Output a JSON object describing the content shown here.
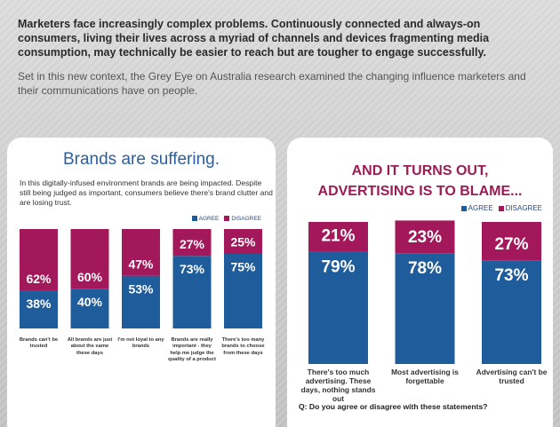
{
  "header": {
    "lead": "Marketers face increasingly complex problems. Continuously connected and always-on consumers, living their lives across a myriad of channels and devices fragmenting media consumption, may technically be easier to reach but are tougher to engage successfully.",
    "body": "Set in this new context, the Grey Eye on Australia research examined the changing influence marketers and their communications have on people."
  },
  "chart_data": [
    {
      "type": "bar",
      "stacked": true,
      "title": "Brands are suffering.",
      "subtitle": "In this digitally-infused environment brands are being impacted. Despite still being judged as important, consumers believe there's brand clutter and are losing trust.",
      "categories": [
        "Brands can't be trusted",
        "All brands are just about the same these days",
        "I'm not loyal to any brands",
        "Brands are really important - they help me judge the quality of a product",
        "There's too many brands to choose from these days"
      ],
      "series": [
        {
          "name": "AGREE",
          "color": "#1f5c9c",
          "values": [
            38,
            40,
            53,
            73,
            75
          ],
          "value_labels": [
            "38%",
            "40%",
            "53%",
            "73%",
            "75%"
          ]
        },
        {
          "name": "DISAGREE",
          "color": "#a3185a",
          "values": [
            62,
            60,
            47,
            27,
            25
          ],
          "value_labels": [
            "62%",
            "60%",
            "47%",
            "27%",
            "25%"
          ]
        }
      ],
      "ylim": [
        0,
        100
      ]
    },
    {
      "type": "bar",
      "stacked": true,
      "title": "AND IT TURNS OUT, ADVERTISING IS TO BLAME...",
      "note": "Q: Do you agree or disagree with these statements?",
      "categories": [
        "There's too much advertising. These days, nothing stands out",
        "Most advertising is forgettable",
        "Advertising can't be trusted"
      ],
      "series": [
        {
          "name": "AGREE",
          "color": "#1f5c9c",
          "values": [
            79,
            78,
            73
          ],
          "value_labels": [
            "79%",
            "78%",
            "73%"
          ]
        },
        {
          "name": "DISAGREE",
          "color": "#a3185a",
          "values": [
            21,
            23,
            27
          ],
          "value_labels": [
            "21%",
            "23%",
            "27%"
          ]
        }
      ],
      "ylim": [
        0,
        100
      ]
    }
  ]
}
